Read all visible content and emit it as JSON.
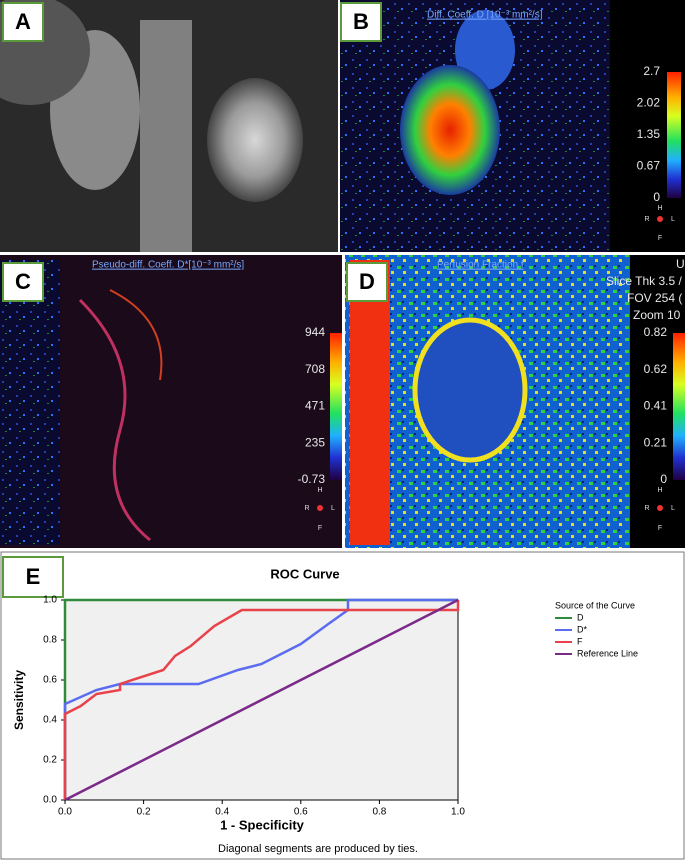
{
  "panels": [
    {
      "label": "A"
    },
    {
      "label": "B",
      "title": "Diff. Coeff. D [10⁻³ mm²/s]",
      "colorbar_ticks": [
        "2.7",
        "2.02",
        "1.35",
        "0.67",
        "0"
      ],
      "orientation": [
        "H",
        "R",
        "L",
        "F"
      ]
    },
    {
      "label": "C",
      "title": "Pseudo-diff. Coeff. D*[10⁻³ mm²/s]",
      "colorbar_ticks": [
        "944",
        "708",
        "471",
        "235",
        "-0.73"
      ],
      "orientation": [
        "H",
        "R",
        "L",
        "F"
      ]
    },
    {
      "label": "D",
      "title": "Perfusion Fraction f",
      "info": [
        "U",
        "Slice Thk 3.5 /",
        "FOV 254 (",
        "Zoom 10"
      ],
      "colorbar_ticks": [
        "0.82",
        "0.62",
        "0.41",
        "0.21",
        "0"
      ],
      "orientation": [
        "H",
        "R",
        "L",
        "F"
      ]
    }
  ],
  "panel_e_label": "E",
  "chart_data": {
    "type": "line",
    "title": "ROC Curve",
    "x_label": "1 - Specificity",
    "y_label": "Sensitivity",
    "note": "Diagonal segments are produced by ties.",
    "legend_title": "Source of the Curve",
    "xlim": [
      0,
      1
    ],
    "ylim": [
      0,
      1
    ],
    "xticks": [
      {
        "value": 0,
        "label": "0.0"
      },
      0.2,
      0.4,
      0.6,
      0.8,
      {
        "value": 1,
        "label": "1.0"
      }
    ],
    "yticks": [
      {
        "value": 0,
        "label": "0.0"
      },
      0.2,
      0.4,
      0.6,
      0.8,
      {
        "value": 1,
        "label": "1.0"
      }
    ],
    "series": [
      {
        "name": "D",
        "color": "#2e8b3a",
        "x": [
          0,
          0,
          1
        ],
        "values": [
          0,
          1,
          1
        ]
      },
      {
        "name": "D*",
        "color": "#5b6cf0",
        "x": [
          0,
          0,
          0.08,
          0.14,
          0.34,
          0.44,
          0.5,
          0.6,
          0.67,
          0.72,
          0.72,
          1
        ],
        "values": [
          0,
          0.48,
          0.55,
          0.58,
          0.58,
          0.65,
          0.68,
          0.78,
          0.88,
          0.95,
          1,
          1
        ]
      },
      {
        "name": "F",
        "color": "#e8424a",
        "x": [
          0,
          0,
          0.04,
          0.08,
          0.14,
          0.14,
          0.25,
          0.28,
          0.32,
          0.38,
          0.45,
          1,
          1
        ],
        "values": [
          0,
          0.43,
          0.47,
          0.53,
          0.55,
          0.58,
          0.65,
          0.72,
          0.77,
          0.87,
          0.95,
          0.95,
          1
        ]
      },
      {
        "name": "Reference Line",
        "color": "#7b2a8a",
        "x": [
          0,
          1
        ],
        "values": [
          0,
          1
        ]
      }
    ]
  }
}
